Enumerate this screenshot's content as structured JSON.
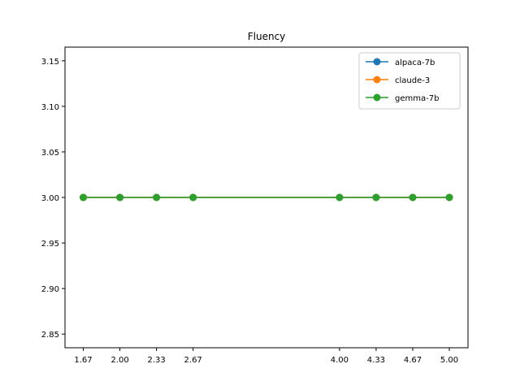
{
  "chart_data": {
    "type": "line",
    "title": "Fluency",
    "xlabel": "",
    "ylabel": "",
    "x": [
      1.6667,
      2.0,
      2.3333,
      2.6667,
      4.0,
      4.3333,
      4.6667,
      5.0
    ],
    "x_tick_labels": [
      "1.67",
      "2.00",
      "2.33",
      "2.67",
      "4.00",
      "4.33",
      "4.67",
      "5.00"
    ],
    "y_ticks": [
      2.85,
      2.9,
      2.95,
      3.0,
      3.05,
      3.1,
      3.15
    ],
    "y_tick_labels": [
      "2.85",
      "2.90",
      "2.95",
      "3.00",
      "3.05",
      "3.10",
      "3.15"
    ],
    "xlim": [
      1.5,
      5.17
    ],
    "ylim": [
      2.835,
      3.165
    ],
    "grid": false,
    "legend_position": "upper right",
    "series": [
      {
        "name": "alpaca-7b",
        "color": "#1f77b4",
        "values": [
          3.0,
          3.0,
          3.0,
          3.0,
          3.0,
          3.0,
          3.0,
          3.0
        ]
      },
      {
        "name": "claude-3",
        "color": "#ff7f0e",
        "values": [
          3.0,
          3.0,
          3.0,
          3.0,
          3.0,
          3.0,
          3.0,
          3.0
        ]
      },
      {
        "name": "gemma-7b",
        "color": "#2ca02c",
        "values": [
          3.0,
          3.0,
          3.0,
          3.0,
          3.0,
          3.0,
          3.0,
          3.0
        ]
      }
    ]
  }
}
